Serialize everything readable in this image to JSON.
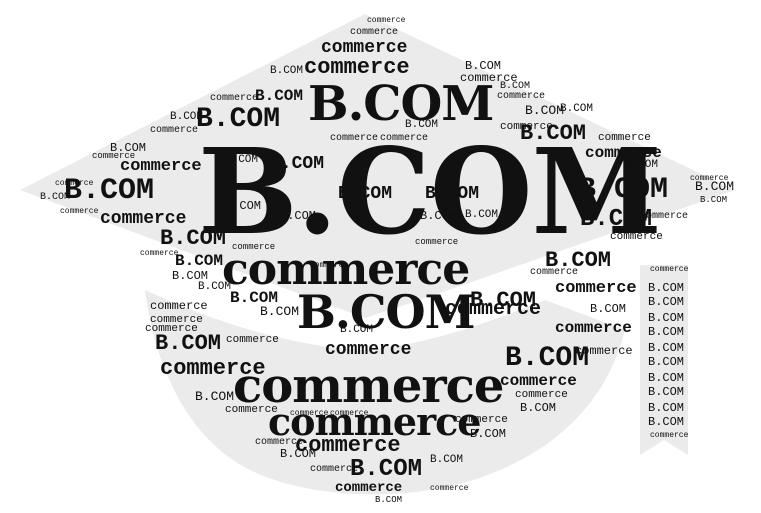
{
  "image": {
    "description_words": [
      "B.COM",
      "commerce"
    ],
    "colors": {
      "background": "#ffffff",
      "shape": "#ebebeb",
      "text": "#111111"
    }
  },
  "words": [
    "B.COM",
    "commerce"
  ]
}
